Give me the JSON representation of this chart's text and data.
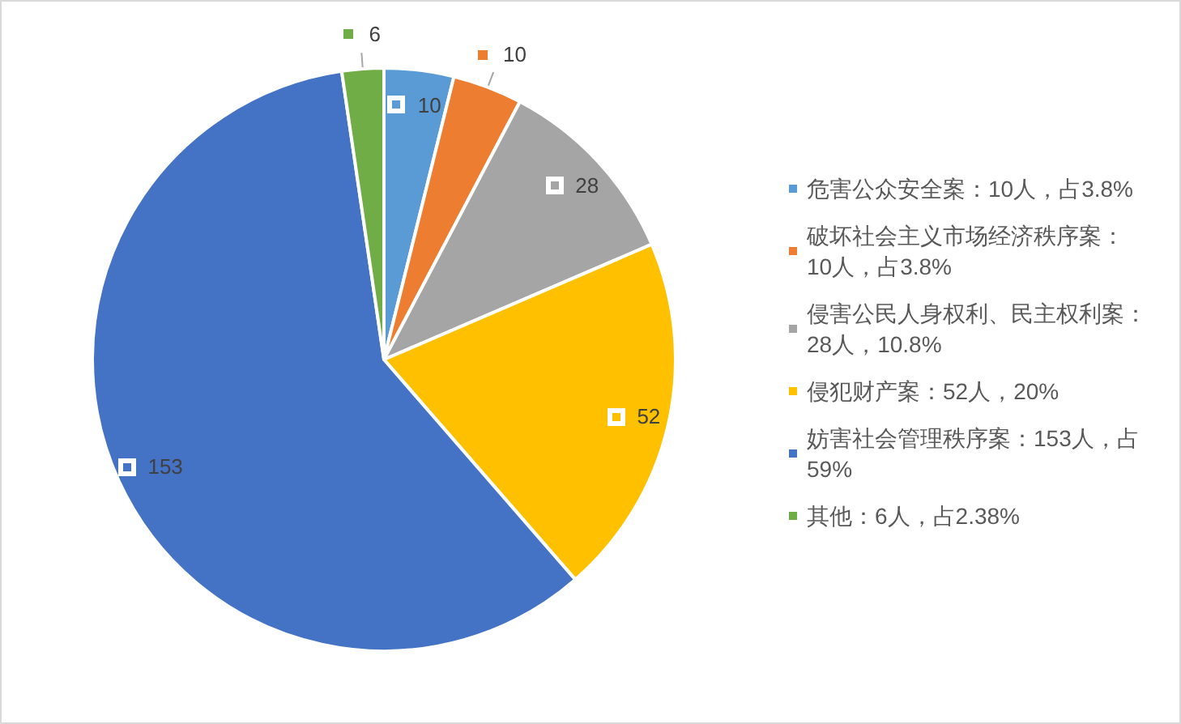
{
  "chart_data": {
    "type": "pie",
    "categories": [
      "危害公众安全案：10人，占3.8%",
      "破坏社会主义市场经济秩序案：10人，占3.8%",
      "侵害公民人身权利、民主权利案：28人，10.8%",
      "侵犯财产案：52人，20%",
      "妨害社会管理秩序案：153人，占59%",
      "其他：6人，占2.38%"
    ],
    "values": [
      10,
      10,
      28,
      52,
      153,
      6
    ],
    "colors": [
      "#5b9bd5",
      "#ed7d31",
      "#a5a5a5",
      "#ffc000",
      "#4472c4",
      "#70ad47"
    ],
    "data_labels": true,
    "legend": "right"
  }
}
